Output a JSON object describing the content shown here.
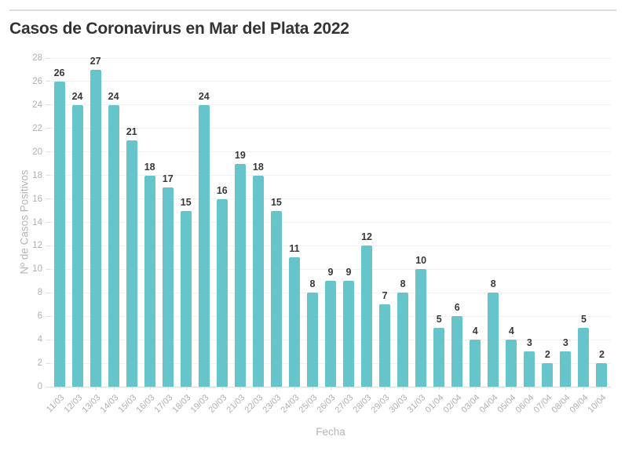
{
  "header": {
    "title": "Casos de Coronavirus en Mar del Plata 2022"
  },
  "chart_data": {
    "type": "bar",
    "title": "Casos de Coronavirus en Mar del Plata 2022",
    "xlabel": "Fecha",
    "ylabel": "Nº de Casos Positivos",
    "categories": [
      "11/03",
      "12/03",
      "13/03",
      "14/03",
      "15/03",
      "16/03",
      "17/03",
      "18/03",
      "19/03",
      "20/03",
      "21/03",
      "22/03",
      "23/03",
      "24/03",
      "25/03",
      "26/03",
      "27/03",
      "28/03",
      "29/03",
      "30/03",
      "31/03",
      "01/04",
      "02/04",
      "03/04",
      "04/04",
      "05/04",
      "06/04",
      "07/04",
      "08/04",
      "09/04",
      "10/04"
    ],
    "values": [
      26,
      24,
      27,
      24,
      21,
      18,
      17,
      15,
      24,
      16,
      19,
      18,
      15,
      11,
      8,
      9,
      9,
      12,
      7,
      8,
      10,
      5,
      6,
      4,
      8,
      4,
      3,
      2,
      3,
      5,
      2
    ],
    "ylim": [
      0,
      28
    ],
    "ytick_step": 2,
    "yticks": [
      0,
      2,
      4,
      6,
      8,
      10,
      12,
      14,
      16,
      18,
      20,
      22,
      24,
      26,
      28
    ],
    "grid": true,
    "legend": "none",
    "colors": {
      "bar": "#66c5ca",
      "value_label": "#383838",
      "axis_text": "#b0b0b0",
      "axis_title": "#b5b5b5",
      "gridline": "#f1f1f1",
      "baseline": "#d9d9d9",
      "title_text": "#333333",
      "top_rule": "#dddddd"
    }
  }
}
